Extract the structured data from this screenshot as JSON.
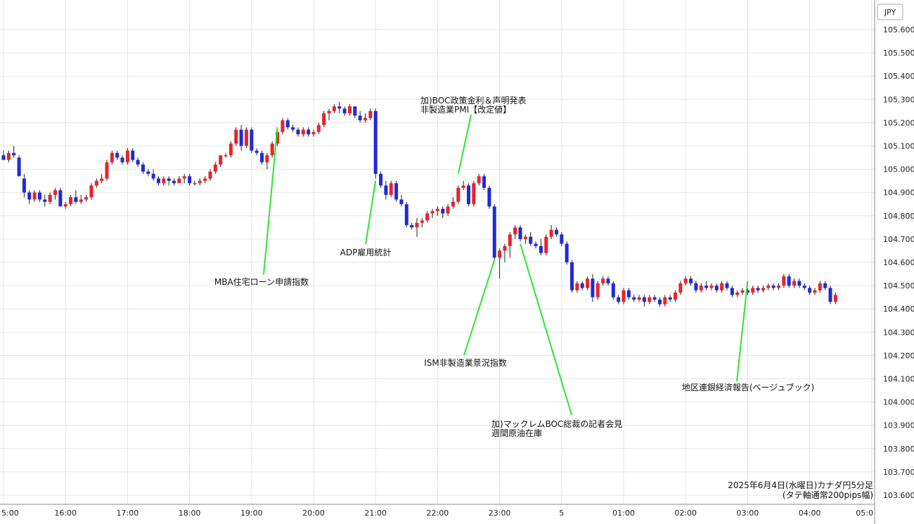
{
  "chart_data": {
    "type": "candlestick",
    "currency_label": "JPY",
    "caption_line1": "2025年6月4日(水曜日)カナダ円5分足",
    "caption_line2": "(タテ軸通常200pips幅)",
    "y_ticks": [
      "105.600",
      "105.500",
      "105.400",
      "105.300",
      "105.200",
      "105.100",
      "105.000",
      "104.900",
      "104.800",
      "104.700",
      "104.600",
      "104.500",
      "104.400",
      "104.300",
      "104.200",
      "104.100",
      "104.000",
      "103.900",
      "103.800",
      "103.700",
      "103.600"
    ],
    "ylim": [
      103.6,
      105.6
    ],
    "x_ticks": [
      "5:00",
      "16:00",
      "17:00",
      "18:00",
      "19:00",
      "20:00",
      "21:00",
      "22:00",
      "23:00",
      "5",
      "01:00",
      "02:00",
      "03:00",
      "04:00",
      "05:0"
    ],
    "x_tick_steps": [
      0,
      12,
      24,
      36,
      48,
      60,
      72,
      84,
      96,
      108,
      120,
      132,
      144,
      156,
      168
    ],
    "grid": true,
    "up_color": "#e8232a",
    "down_color": "#1f2bd6",
    "candles": [
      [
        105.06,
        105.08,
        105.04,
        105.04
      ],
      [
        105.04,
        105.08,
        105.03,
        105.07
      ],
      [
        105.07,
        105.1,
        105.05,
        105.06
      ],
      [
        105.05,
        105.06,
        104.97,
        104.97
      ],
      [
        104.96,
        104.98,
        104.88,
        104.9
      ],
      [
        104.9,
        104.91,
        104.85,
        104.87
      ],
      [
        104.87,
        104.91,
        104.86,
        104.9
      ],
      [
        104.9,
        104.91,
        104.86,
        104.87
      ],
      [
        104.87,
        104.89,
        104.84,
        104.86
      ],
      [
        104.86,
        104.9,
        104.85,
        104.89
      ],
      [
        104.89,
        104.92,
        104.87,
        104.91
      ],
      [
        104.91,
        104.92,
        104.84,
        104.84
      ],
      [
        104.84,
        104.86,
        104.83,
        104.85
      ],
      [
        104.85,
        104.89,
        104.84,
        104.88
      ],
      [
        104.88,
        104.91,
        104.85,
        104.86
      ],
      [
        104.86,
        104.89,
        104.85,
        104.87
      ],
      [
        104.87,
        104.89,
        104.86,
        104.88
      ],
      [
        104.88,
        104.94,
        104.87,
        104.93
      ],
      [
        104.93,
        104.96,
        104.92,
        104.95
      ],
      [
        104.95,
        104.98,
        104.94,
        104.96
      ],
      [
        104.96,
        105.04,
        104.95,
        105.03
      ],
      [
        105.03,
        105.08,
        105.02,
        105.07
      ],
      [
        105.07,
        105.08,
        105.04,
        105.05
      ],
      [
        105.05,
        105.06,
        105.02,
        105.03
      ],
      [
        105.03,
        105.09,
        105.02,
        105.08
      ],
      [
        105.08,
        105.09,
        105.03,
        105.04
      ],
      [
        105.04,
        105.05,
        105.01,
        105.02
      ],
      [
        105.02,
        105.03,
        104.98,
        104.99
      ],
      [
        104.99,
        105.0,
        104.97,
        104.98
      ],
      [
        104.98,
        105.0,
        104.95,
        104.96
      ],
      [
        104.96,
        104.97,
        104.93,
        104.94
      ],
      [
        104.94,
        104.97,
        104.93,
        104.96
      ],
      [
        104.96,
        104.97,
        104.93,
        104.95
      ],
      [
        104.95,
        104.96,
        104.93,
        104.94
      ],
      [
        104.94,
        104.97,
        104.94,
        104.96
      ],
      [
        104.96,
        104.98,
        104.94,
        104.97
      ],
      [
        104.97,
        104.98,
        104.93,
        104.94
      ],
      [
        104.94,
        104.95,
        104.93,
        104.94
      ],
      [
        104.94,
        104.96,
        104.93,
        104.95
      ],
      [
        104.95,
        104.97,
        104.94,
        104.96
      ],
      [
        104.96,
        105.0,
        104.95,
        104.99
      ],
      [
        104.99,
        105.03,
        104.98,
        105.02
      ],
      [
        105.02,
        105.06,
        105.01,
        105.06
      ],
      [
        105.06,
        105.07,
        105.05,
        105.06
      ],
      [
        105.06,
        105.12,
        105.05,
        105.11
      ],
      [
        105.11,
        105.18,
        105.1,
        105.17
      ],
      [
        105.17,
        105.19,
        105.08,
        105.1
      ],
      [
        105.1,
        105.18,
        105.09,
        105.17
      ],
      [
        105.17,
        105.18,
        105.07,
        105.08
      ],
      [
        105.08,
        105.09,
        105.06,
        105.07
      ],
      [
        105.07,
        105.08,
        105.02,
        105.03
      ],
      [
        105.03,
        105.07,
        105.0,
        105.06
      ],
      [
        105.06,
        105.12,
        105.05,
        105.11
      ],
      [
        105.11,
        105.17,
        105.1,
        105.16
      ],
      [
        105.16,
        105.22,
        105.15,
        105.21
      ],
      [
        105.21,
        105.22,
        105.17,
        105.18
      ],
      [
        105.18,
        105.19,
        105.16,
        105.17
      ],
      [
        105.17,
        105.18,
        105.14,
        105.15
      ],
      [
        105.15,
        105.18,
        105.14,
        105.17
      ],
      [
        105.17,
        105.18,
        105.14,
        105.15
      ],
      [
        105.15,
        105.17,
        105.14,
        105.16
      ],
      [
        105.16,
        105.2,
        105.15,
        105.19
      ],
      [
        105.19,
        105.25,
        105.18,
        105.24
      ],
      [
        105.24,
        105.26,
        105.21,
        105.25
      ],
      [
        105.25,
        105.28,
        105.24,
        105.27
      ],
      [
        105.27,
        105.29,
        105.24,
        105.26
      ],
      [
        105.26,
        105.27,
        105.23,
        105.24
      ],
      [
        105.24,
        105.28,
        105.23,
        105.27
      ],
      [
        105.27,
        105.27,
        105.22,
        105.23
      ],
      [
        105.23,
        105.25,
        105.2,
        105.21
      ],
      [
        105.21,
        105.24,
        105.2,
        105.22
      ],
      [
        105.22,
        105.26,
        105.21,
        105.25
      ],
      [
        105.25,
        105.26,
        104.96,
        104.98
      ],
      [
        104.98,
        104.99,
        104.92,
        104.93
      ],
      [
        104.93,
        104.95,
        104.87,
        104.89
      ],
      [
        104.89,
        104.95,
        104.88,
        104.94
      ],
      [
        104.94,
        104.95,
        104.86,
        104.87
      ],
      [
        104.87,
        104.89,
        104.84,
        104.85
      ],
      [
        104.85,
        104.86,
        104.75,
        104.76
      ],
      [
        104.76,
        104.77,
        104.74,
        104.75
      ],
      [
        104.75,
        104.79,
        104.71,
        104.77
      ],
      [
        104.77,
        104.79,
        104.75,
        104.78
      ],
      [
        104.78,
        104.82,
        104.77,
        104.81
      ],
      [
        104.81,
        104.83,
        104.79,
        104.82
      ],
      [
        104.82,
        104.84,
        104.8,
        104.83
      ],
      [
        104.83,
        104.84,
        104.79,
        104.81
      ],
      [
        104.81,
        104.85,
        104.8,
        104.84
      ],
      [
        104.84,
        104.88,
        104.83,
        104.86
      ],
      [
        104.86,
        104.93,
        104.85,
        104.92
      ],
      [
        104.92,
        104.95,
        104.91,
        104.93
      ],
      [
        104.93,
        104.94,
        104.84,
        104.85
      ],
      [
        104.85,
        104.95,
        104.84,
        104.94
      ],
      [
        104.94,
        104.98,
        104.93,
        104.97
      ],
      [
        104.97,
        104.98,
        104.91,
        104.92
      ],
      [
        104.92,
        104.93,
        104.83,
        104.84
      ],
      [
        104.84,
        104.85,
        104.61,
        104.62
      ],
      [
        104.62,
        104.66,
        104.53,
        104.65
      ],
      [
        104.65,
        104.68,
        104.6,
        104.67
      ],
      [
        104.67,
        104.73,
        104.62,
        104.72
      ],
      [
        104.72,
        104.76,
        104.7,
        104.75
      ],
      [
        104.75,
        104.76,
        104.69,
        104.7
      ],
      [
        104.7,
        104.72,
        104.68,
        104.71
      ],
      [
        104.71,
        104.73,
        104.67,
        104.68
      ],
      [
        104.68,
        104.69,
        104.66,
        104.67
      ],
      [
        104.67,
        104.7,
        104.63,
        104.64
      ],
      [
        104.64,
        104.72,
        104.63,
        104.71
      ],
      [
        104.71,
        104.76,
        104.7,
        104.74
      ],
      [
        104.74,
        104.75,
        104.71,
        104.72
      ],
      [
        104.72,
        104.73,
        104.67,
        104.68
      ],
      [
        104.68,
        104.69,
        104.59,
        104.6
      ],
      [
        104.6,
        104.61,
        104.47,
        104.48
      ],
      [
        104.48,
        104.52,
        104.47,
        104.51
      ],
      [
        104.51,
        104.52,
        104.48,
        104.49
      ],
      [
        104.49,
        104.54,
        104.48,
        104.53
      ],
      [
        104.53,
        104.55,
        104.43,
        104.45
      ],
      [
        104.45,
        104.52,
        104.44,
        104.51
      ],
      [
        104.51,
        104.54,
        104.5,
        104.53
      ],
      [
        104.53,
        104.54,
        104.5,
        104.51
      ],
      [
        104.51,
        104.52,
        104.44,
        104.45
      ],
      [
        104.45,
        104.46,
        104.42,
        104.43
      ],
      [
        104.43,
        104.49,
        104.42,
        104.48
      ],
      [
        104.48,
        104.49,
        104.44,
        104.45
      ],
      [
        104.45,
        104.46,
        104.43,
        104.44
      ],
      [
        104.44,
        104.46,
        104.43,
        104.45
      ],
      [
        104.45,
        104.46,
        104.41,
        104.43
      ],
      [
        104.43,
        104.46,
        104.42,
        104.45
      ],
      [
        104.45,
        104.46,
        104.43,
        104.44
      ],
      [
        104.44,
        104.45,
        104.41,
        104.42
      ],
      [
        104.42,
        104.46,
        104.41,
        104.45
      ],
      [
        104.45,
        104.46,
        104.43,
        104.44
      ],
      [
        104.44,
        104.48,
        104.43,
        104.47
      ],
      [
        104.47,
        104.52,
        104.46,
        104.51
      ],
      [
        104.51,
        104.54,
        104.5,
        104.53
      ],
      [
        104.53,
        104.54,
        104.5,
        104.51
      ],
      [
        104.51,
        104.52,
        104.47,
        104.48
      ],
      [
        104.48,
        104.51,
        104.47,
        104.5
      ],
      [
        104.5,
        104.52,
        104.48,
        104.49
      ],
      [
        104.49,
        104.51,
        104.48,
        104.5
      ],
      [
        104.5,
        104.51,
        104.47,
        104.48
      ],
      [
        104.48,
        104.52,
        104.47,
        104.51
      ],
      [
        104.51,
        104.52,
        104.48,
        104.49
      ],
      [
        104.49,
        104.5,
        104.45,
        104.46
      ],
      [
        104.46,
        104.48,
        104.45,
        104.47
      ],
      [
        104.47,
        104.49,
        104.46,
        104.48
      ],
      [
        104.48,
        104.49,
        104.46,
        104.47
      ],
      [
        104.47,
        104.5,
        104.46,
        104.49
      ],
      [
        104.49,
        104.5,
        104.47,
        104.48
      ],
      [
        104.48,
        104.5,
        104.47,
        104.49
      ],
      [
        104.49,
        104.51,
        104.48,
        104.5
      ],
      [
        104.5,
        104.51,
        104.48,
        104.49
      ],
      [
        104.49,
        104.51,
        104.48,
        104.5
      ],
      [
        104.5,
        104.55,
        104.49,
        104.54
      ],
      [
        104.54,
        104.55,
        104.49,
        104.5
      ],
      [
        104.5,
        104.53,
        104.49,
        104.52
      ],
      [
        104.52,
        104.53,
        104.49,
        104.5
      ],
      [
        104.5,
        104.51,
        104.48,
        104.49
      ],
      [
        104.49,
        104.5,
        104.46,
        104.47
      ],
      [
        104.47,
        104.49,
        104.46,
        104.48
      ],
      [
        104.48,
        104.52,
        104.47,
        104.51
      ],
      [
        104.51,
        104.52,
        104.48,
        104.49
      ],
      [
        104.49,
        104.5,
        104.42,
        104.43
      ],
      [
        104.43,
        104.47,
        104.42,
        104.46
      ]
    ],
    "annotations": [
      {
        "lines": [
          "MBA住宅ローン申請指数"
        ],
        "target_index": 53,
        "target_price": 105.18
      },
      {
        "lines": [
          "ADP雇用統計"
        ],
        "target_index": 72,
        "target_price": 104.95
      },
      {
        "lines": [
          "加)BOC政策金利＆声明発表",
          "非製造業PMI【改定値】"
        ],
        "target_index": 88,
        "target_price": 104.98
      },
      {
        "lines": [
          "ISM非製造業景況指数"
        ],
        "target_index": 95,
        "target_price": 104.61
      },
      {
        "lines": [
          "加)マックレムBOC総裁の記者会見",
          "週間原油在庫"
        ],
        "target_index": 100,
        "target_price": 104.68
      },
      {
        "lines": [
          "地区連銀経済報告(ベージュブック)"
        ],
        "target_index": 144,
        "target_price": 104.52
      }
    ]
  }
}
